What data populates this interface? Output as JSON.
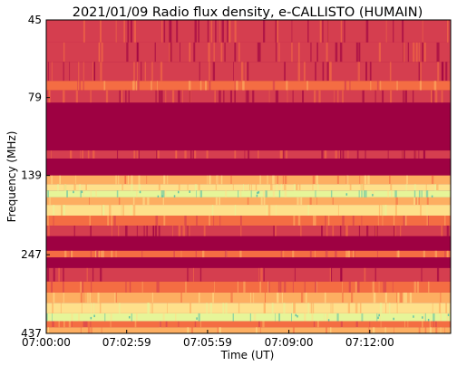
{
  "chart_data": {
    "type": "heatmap",
    "title": "2021/01/09  Radio flux density, e-CALLISTO (HUMAIN)",
    "xlabel": "Time (UT)",
    "ylabel": "Frequency (MHz)",
    "x_tick_labels": [
      "07:00:00",
      "07:02:59",
      "07:05:59",
      "07:09:00",
      "07:12:00"
    ],
    "y_tick_labels": [
      "45",
      "79",
      "139",
      "247",
      "437"
    ],
    "x_range": [
      "07:00:00",
      "07:15:00"
    ],
    "y_range_mhz": [
      45,
      437
    ],
    "y_axis_inverted": true,
    "colormap": "Spectral_r",
    "colors": {
      "background_level": "#9e0142",
      "low": "#d53e4f",
      "mid": "#f46d43",
      "high": "#fdae61",
      "very_high": "#fee08b",
      "peak": "#e6f598",
      "extreme": "#66c2a5"
    },
    "frequency_bands": [
      {
        "from_mhz": 45,
        "to_mhz": 53,
        "level": "low"
      },
      {
        "from_mhz": 53,
        "to_mhz": 61,
        "level": "low"
      },
      {
        "from_mhz": 61,
        "to_mhz": 70,
        "level": "low"
      },
      {
        "from_mhz": 70,
        "to_mhz": 75,
        "level": "mid"
      },
      {
        "from_mhz": 75,
        "to_mhz": 82,
        "level": "low"
      },
      {
        "from_mhz": 82,
        "to_mhz": 116,
        "level": "background_level"
      },
      {
        "from_mhz": 116,
        "to_mhz": 123,
        "level": "low"
      },
      {
        "from_mhz": 123,
        "to_mhz": 139,
        "level": "background_level"
      },
      {
        "from_mhz": 139,
        "to_mhz": 148,
        "level": "high"
      },
      {
        "from_mhz": 148,
        "to_mhz": 155,
        "level": "very_high"
      },
      {
        "from_mhz": 155,
        "to_mhz": 163,
        "level": "peak"
      },
      {
        "from_mhz": 163,
        "to_mhz": 172,
        "level": "high"
      },
      {
        "from_mhz": 172,
        "to_mhz": 186,
        "level": "very_high"
      },
      {
        "from_mhz": 186,
        "to_mhz": 200,
        "level": "mid"
      },
      {
        "from_mhz": 200,
        "to_mhz": 216,
        "level": "low"
      },
      {
        "from_mhz": 216,
        "to_mhz": 240,
        "level": "background_level"
      },
      {
        "from_mhz": 240,
        "to_mhz": 252,
        "level": "mid"
      },
      {
        "from_mhz": 252,
        "to_mhz": 272,
        "level": "background_level"
      },
      {
        "from_mhz": 272,
        "to_mhz": 300,
        "level": "low"
      },
      {
        "from_mhz": 300,
        "to_mhz": 325,
        "level": "mid"
      },
      {
        "from_mhz": 325,
        "to_mhz": 350,
        "level": "high"
      },
      {
        "from_mhz": 350,
        "to_mhz": 378,
        "level": "very_high"
      },
      {
        "from_mhz": 378,
        "to_mhz": 400,
        "level": "peak"
      },
      {
        "from_mhz": 400,
        "to_mhz": 418,
        "level": "mid"
      },
      {
        "from_mhz": 418,
        "to_mhz": 437,
        "level": "high"
      }
    ],
    "grid": false,
    "legend": "none"
  }
}
